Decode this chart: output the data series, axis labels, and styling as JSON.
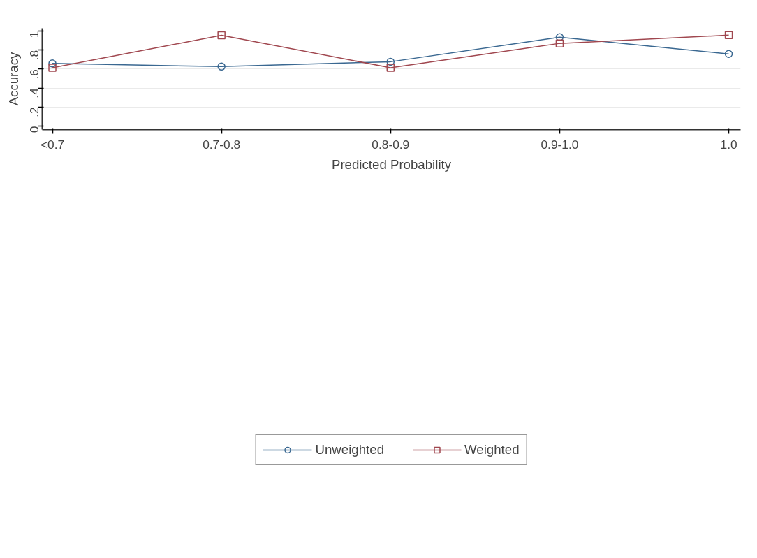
{
  "chart_data": {
    "type": "line",
    "xlabel": "Predicted Probability",
    "ylabel": "Accuracy",
    "categories": [
      "<0.7",
      "0.7-0.8",
      "0.8-0.9",
      "0.9-1.0",
      "1.0"
    ],
    "series": [
      {
        "name": "Unweighted",
        "color": "#3a6891",
        "marker": "circle",
        "values": [
          0.66,
          0.627,
          0.678,
          0.936,
          0.76
        ]
      },
      {
        "name": "Weighted",
        "color": "#a0474f",
        "marker": "square",
        "values": [
          0.615,
          0.956,
          0.615,
          0.871,
          0.958
        ]
      }
    ],
    "ylim": [
      -0.036,
      1.03
    ],
    "yticks": [
      {
        "value": 0,
        "label": "0"
      },
      {
        "value": 0.2,
        "label": ".2"
      },
      {
        "value": 0.4,
        "label": ".4"
      },
      {
        "value": 0.6,
        "label": ".6"
      },
      {
        "value": 0.8,
        "label": ".8"
      },
      {
        "value": 1,
        "label": "1"
      }
    ],
    "grid": "y",
    "legend": "bottom",
    "line_style": "solid"
  }
}
